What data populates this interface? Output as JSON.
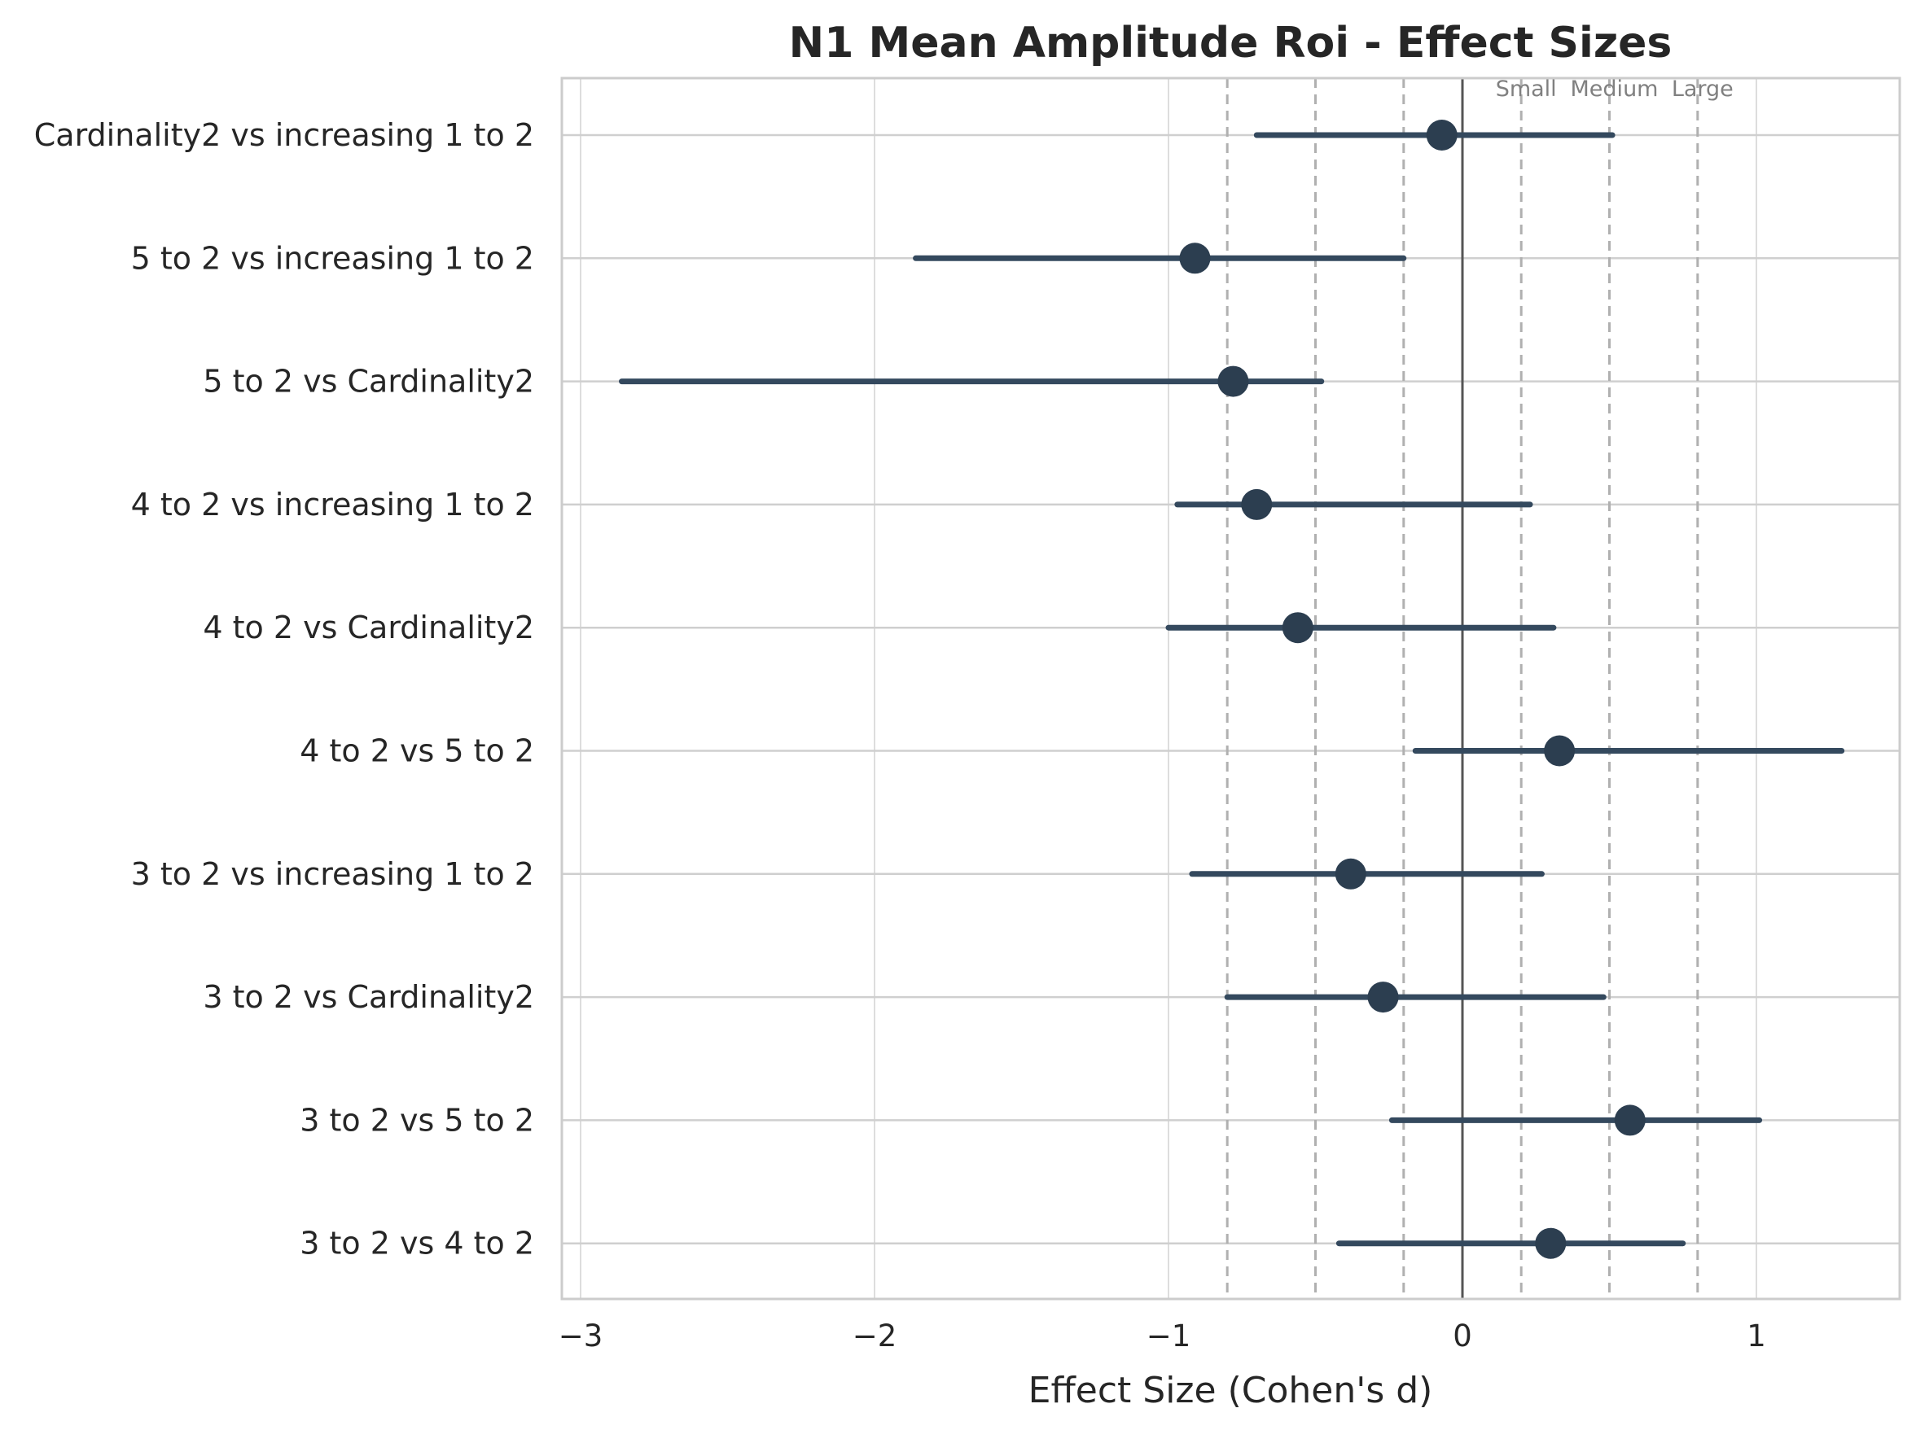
{
  "chart_data": {
    "type": "forest",
    "title": "N1 Mean Amplitude Roi - Effect Sizes",
    "xlabel": "Effect Size (Cohen's d)",
    "ylabel": "",
    "xlim": [
      -3.05,
      1.5
    ],
    "xticks": [
      -3,
      -2,
      -1,
      0,
      1
    ],
    "xtick_labels": [
      "−3",
      "−2",
      "−1",
      "0",
      "1"
    ],
    "grid": true,
    "reference_lines": {
      "zero": 0,
      "thresholds": [
        -0.8,
        -0.5,
        -0.2,
        0.2,
        0.5,
        0.8
      ],
      "threshold_labels": [
        "Small",
        "Medium",
        "Large"
      ]
    },
    "colors": {
      "point": "#2c3e50",
      "ci_line": "#34495e",
      "grid": "#dddddd",
      "threshold": "#b0b0b0",
      "zero": "#555555"
    },
    "categories": [
      "Cardinality2 vs increasing 1 to 2",
      "5 to 2 vs increasing 1 to 2",
      "5 to 2 vs Cardinality2",
      "4 to 2 vs increasing 1 to 2",
      "4 to 2 vs Cardinality2",
      "4 to 2 vs 5 to 2",
      "3 to 2 vs increasing 1 to 2",
      "3 to 2 vs Cardinality2",
      "3 to 2 vs 5 to 2",
      "3 to 2 vs 4 to 2"
    ],
    "effect": [
      -0.07,
      -0.91,
      -0.78,
      -0.7,
      -0.56,
      0.33,
      -0.38,
      -0.27,
      0.57,
      0.3
    ],
    "ci_low": [
      -0.7,
      -1.86,
      -2.86,
      -0.97,
      -1.0,
      -0.16,
      -0.92,
      -0.8,
      -0.24,
      -0.42
    ],
    "ci_high": [
      0.51,
      -0.2,
      -0.48,
      0.23,
      0.31,
      1.29,
      0.27,
      0.48,
      1.01,
      0.75
    ]
  }
}
